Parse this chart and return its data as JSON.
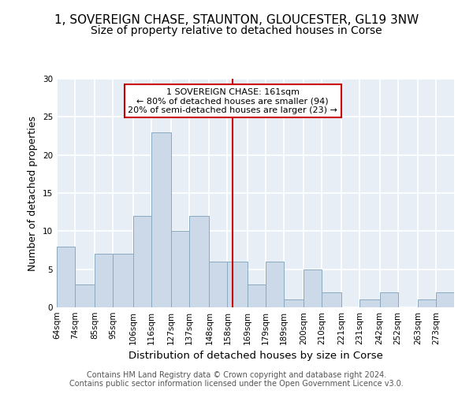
{
  "title": "1, SOVEREIGN CHASE, STAUNTON, GLOUCESTER, GL19 3NW",
  "subtitle": "Size of property relative to detached houses in Corse",
  "xlabel": "Distribution of detached houses by size in Corse",
  "ylabel": "Number of detached properties",
  "bin_labels": [
    "64sqm",
    "74sqm",
    "85sqm",
    "95sqm",
    "106sqm",
    "116sqm",
    "127sqm",
    "137sqm",
    "148sqm",
    "158sqm",
    "169sqm",
    "179sqm",
    "189sqm",
    "200sqm",
    "210sqm",
    "221sqm",
    "231sqm",
    "242sqm",
    "252sqm",
    "263sqm",
    "273sqm"
  ],
  "bin_edges": [
    64,
    74,
    85,
    95,
    106,
    116,
    127,
    137,
    148,
    158,
    169,
    179,
    189,
    200,
    210,
    221,
    231,
    242,
    252,
    263,
    273,
    283
  ],
  "counts": [
    8,
    3,
    7,
    7,
    12,
    23,
    10,
    12,
    6,
    6,
    3,
    6,
    1,
    5,
    2,
    0,
    1,
    2,
    0,
    1,
    2
  ],
  "bar_color": "#ccd9e8",
  "bar_edge_color": "#8aaabf",
  "bg_color": "#e8eef5",
  "grid_color": "#ffffff",
  "vline_x": 161,
  "vline_color": "#cc0000",
  "annotation_text": "1 SOVEREIGN CHASE: 161sqm\n← 80% of detached houses are smaller (94)\n20% of semi-detached houses are larger (23) →",
  "annotation_box_color": "#cc0000",
  "ylim": [
    0,
    30
  ],
  "yticks": [
    0,
    5,
    10,
    15,
    20,
    25,
    30
  ],
  "footer": "Contains HM Land Registry data © Crown copyright and database right 2024.\nContains public sector information licensed under the Open Government Licence v3.0.",
  "title_fontsize": 11,
  "subtitle_fontsize": 10,
  "xlabel_fontsize": 9.5,
  "ylabel_fontsize": 9,
  "tick_fontsize": 7.5,
  "footer_fontsize": 7,
  "annot_fontsize": 8
}
